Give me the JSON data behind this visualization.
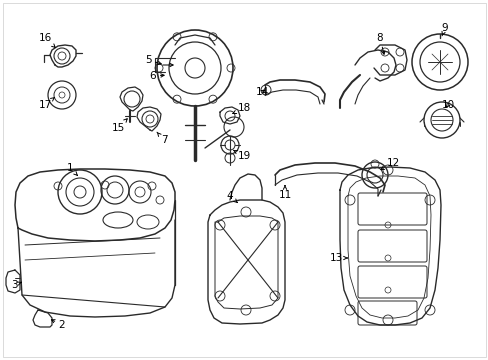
{
  "background_color": "#ffffff",
  "line_color": "#2a2a2a",
  "label_color": "#000000",
  "fig_width": 4.89,
  "fig_height": 3.6,
  "dpi": 100,
  "border": true
}
